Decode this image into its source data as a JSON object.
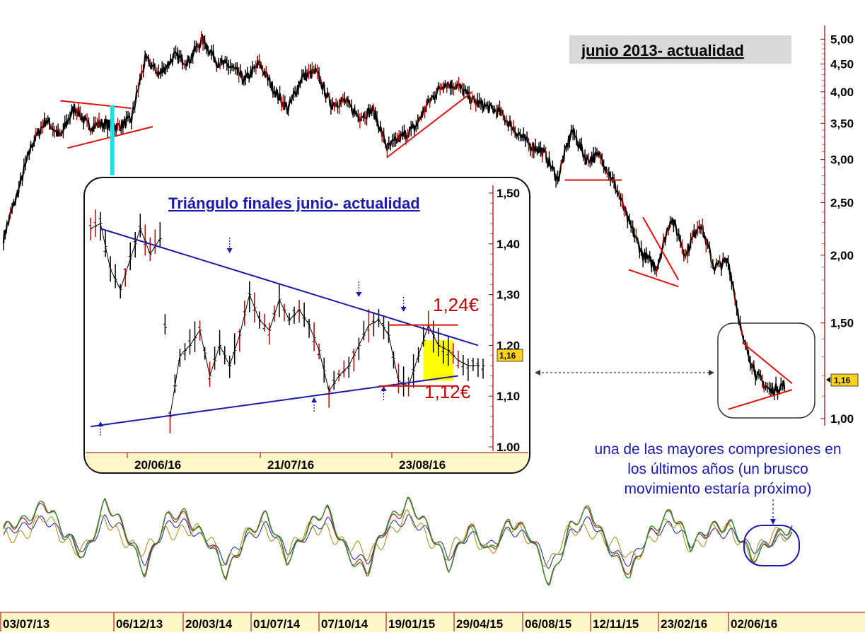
{
  "colors": {
    "price": "#000000",
    "price_down": "#c00000",
    "trendline_main": "#dd1111",
    "trendline_inset": "#1a1aaa",
    "inset_title": "#1a1ab0",
    "price_level_text": "#c00000",
    "highlight_yellow": "#ffff00",
    "cyan_marker": "#22e0e0",
    "last_price_badge": "#ffd21f",
    "osc_green": "#2f8a2a",
    "osc_red": "#c02020",
    "osc_olive": "#a09a20",
    "osc_blue": "#1a1aaa",
    "axis_bar": "#fff7c8",
    "annotation_text": "#1a1ab0"
  },
  "chart_data": [
    {
      "type": "line",
      "title": "junio 2013- actualidad",
      "y_scale": "log",
      "ylim": [
        0.97,
        5.3
      ],
      "y_ticks": [
        "5,00",
        "4,50",
        "4,00",
        "3,50",
        "3,00",
        "2,50",
        "2,00",
        "1,50",
        "1,00"
      ],
      "y_tick_values": [
        5.0,
        4.5,
        4.0,
        3.5,
        3.0,
        2.5,
        2.0,
        1.5,
        1.0
      ],
      "x_ticks": [
        "03/07/13",
        "06/12/13",
        "20/03/14",
        "01/07/14",
        "07/10/14",
        "19/01/15",
        "29/04/15",
        "06/08/15",
        "12/11/15",
        "23/02/16",
        "02/06/16"
      ],
      "last_price": "1,16",
      "series": [
        {
          "x_index": [
            0,
            2,
            4,
            6,
            8,
            10,
            12,
            14,
            16,
            18,
            20,
            22,
            24,
            26,
            28,
            30,
            32,
            34,
            36,
            38,
            40,
            42,
            44,
            46,
            48,
            50,
            52,
            54,
            56,
            58,
            60,
            62,
            64,
            66,
            68,
            70,
            72,
            74,
            76,
            78,
            80,
            82,
            84,
            86,
            88,
            90,
            92,
            94,
            96,
            98,
            100,
            102,
            104,
            106,
            108,
            110
          ],
          "values": [
            2.15,
            2.6,
            3.2,
            3.55,
            3.3,
            3.75,
            3.45,
            3.5,
            3.45,
            3.55,
            4.6,
            4.3,
            4.65,
            4.55,
            5.0,
            4.55,
            4.45,
            4.2,
            4.5,
            4.05,
            3.7,
            4.25,
            4.35,
            3.8,
            3.85,
            3.6,
            3.7,
            3.15,
            3.3,
            3.45,
            3.85,
            4.15,
            4.1,
            3.85,
            3.75,
            3.65,
            3.4,
            3.2,
            3.1,
            2.75,
            3.4,
            3.0,
            3.05,
            2.7,
            2.3,
            2.0,
            1.9,
            2.35,
            2.0,
            2.3,
            1.9,
            1.95,
            1.4,
            1.2,
            1.12,
            1.16
          ]
        }
      ],
      "trendlines": [
        {
          "name": "triangle-2013-top",
          "from": [
            8,
            3.85
          ],
          "to": [
            18,
            3.73
          ]
        },
        {
          "name": "triangle-2013-bottom",
          "from": [
            9,
            3.15
          ],
          "to": [
            21,
            3.45
          ]
        },
        {
          "name": "trend-2015-support",
          "from": [
            54,
            3.03
          ],
          "to": [
            66,
            4.0
          ]
        },
        {
          "name": "support-2015",
          "from": [
            79,
            2.75
          ],
          "to": [
            87,
            2.75
          ]
        },
        {
          "name": "wedge-2016-top",
          "from": [
            90,
            2.35
          ],
          "to": [
            95,
            1.8
          ]
        },
        {
          "name": "wedge-2016-bottom",
          "from": [
            88,
            1.88
          ],
          "to": [
            95,
            1.75
          ]
        },
        {
          "name": "triangle-2016-top",
          "from": [
            104,
            1.38
          ],
          "to": [
            111,
            1.16
          ]
        },
        {
          "name": "triangle-2016-bottom",
          "from": [
            102,
            1.04
          ],
          "to": [
            111,
            1.13
          ]
        }
      ]
    },
    {
      "type": "line",
      "title": "Triángulo finales junio- actualidad",
      "ylim": [
        1.0,
        1.5
      ],
      "y_ticks": [
        "1,50",
        "1,40",
        "1,30",
        "1,20",
        "1,10",
        "1.00"
      ],
      "y_tick_values": [
        1.5,
        1.4,
        1.3,
        1.2,
        1.1,
        1.0
      ],
      "x_ticks": [
        "20/06/16",
        "21/07/16",
        "23/08/16"
      ],
      "last_price": "1,16",
      "price_levels": [
        "1,24€",
        "1,12€"
      ],
      "price_level_values": [
        1.24,
        1.12
      ],
      "series": [
        {
          "x_index": [
            0,
            2,
            4,
            6,
            8,
            10,
            12,
            14,
            16,
            18,
            20,
            22,
            24,
            26,
            28,
            30,
            32,
            34,
            36,
            38,
            40,
            42,
            44,
            46,
            48,
            50,
            52,
            54,
            56,
            58,
            60,
            62,
            64,
            66,
            68,
            70,
            72,
            74,
            76,
            78
          ],
          "values": [
            1.43,
            1.44,
            1.35,
            1.31,
            1.37,
            1.43,
            1.38,
            1.41,
            1.06,
            1.18,
            1.2,
            1.23,
            1.14,
            1.2,
            1.16,
            1.22,
            1.3,
            1.25,
            1.23,
            1.29,
            1.25,
            1.27,
            1.24,
            1.19,
            1.11,
            1.14,
            1.16,
            1.2,
            1.24,
            1.25,
            1.22,
            1.13,
            1.12,
            1.18,
            1.24,
            1.2,
            1.19,
            1.17,
            1.16,
            1.16
          ]
        }
      ],
      "trendlines": [
        {
          "name": "inset-triangle-top",
          "from": [
            2,
            1.43
          ],
          "to": [
            78,
            1.2
          ]
        },
        {
          "name": "inset-triangle-bottom",
          "from": [
            0,
            1.04
          ],
          "to": [
            74,
            1.14
          ]
        },
        {
          "name": "inset-level-124",
          "from": [
            60,
            1.24
          ],
          "to": [
            74,
            1.24
          ]
        },
        {
          "name": "inset-level-112",
          "from": [
            58,
            1.12
          ],
          "to": [
            74,
            1.12
          ]
        }
      ],
      "highlight_box": {
        "x_from": 67,
        "x_to": 73,
        "y_from": 1.13,
        "y_to": 1.21
      }
    },
    {
      "type": "line",
      "name": "oscillator",
      "series": [
        {
          "name": "green",
          "values": [
            0.2,
            0.4,
            0.9,
            0.1,
            -0.3,
            0.8,
            0.2,
            -0.6,
            0.4,
            0.6,
            0.1,
            -0.8,
            0.2,
            0.5,
            -0.4,
            0.3,
            0.6,
            -0.2,
            -0.7,
            0.4,
            0.9,
            0.2,
            -0.5,
            0.3,
            -0.3,
            0.5,
            0.1,
            -0.9,
            0.3,
            0.6,
            -0.1,
            -0.8,
            0.2,
            0.7,
            -0.2,
            0.4,
            0.3,
            -0.4,
            0.1,
            0.2
          ]
        }
      ]
    }
  ],
  "annotation": "una de las mayores compresiones en los últimos años (un brusco movimiento estaría próximo)",
  "annotation_lines": [
    "una de las mayores compresiones en",
    "los últimos años (un brusco",
    "movimiento estaría próximo)"
  ]
}
